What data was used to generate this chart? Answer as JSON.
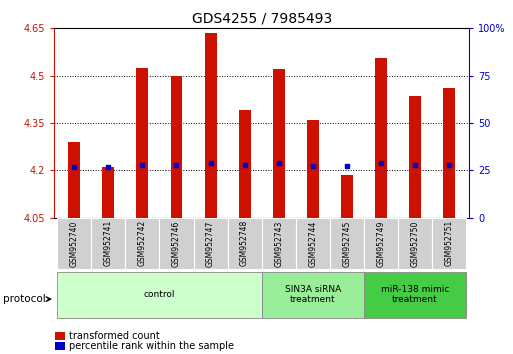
{
  "title": "GDS4255 / 7985493",
  "samples": [
    "GSM952740",
    "GSM952741",
    "GSM952742",
    "GSM952746",
    "GSM952747",
    "GSM952748",
    "GSM952743",
    "GSM952744",
    "GSM952745",
    "GSM952749",
    "GSM952750",
    "GSM952751"
  ],
  "bar_tops": [
    4.29,
    4.21,
    4.525,
    4.5,
    4.635,
    4.39,
    4.52,
    4.36,
    4.185,
    4.555,
    4.435,
    4.46
  ],
  "bar_bottoms": [
    4.05,
    4.05,
    4.05,
    4.05,
    4.05,
    4.05,
    4.05,
    4.05,
    4.05,
    4.05,
    4.05,
    4.05
  ],
  "percentile_vals": [
    4.212,
    4.212,
    4.216,
    4.216,
    4.222,
    4.216,
    4.222,
    4.213,
    4.213,
    4.222,
    4.216,
    4.216
  ],
  "groups": [
    {
      "label": "control",
      "start": 0,
      "end": 6,
      "color": "#ccffcc"
    },
    {
      "label": "SIN3A siRNA\ntreatment",
      "start": 6,
      "end": 9,
      "color": "#99ee99"
    },
    {
      "label": "miR-138 mimic\ntreatment",
      "start": 9,
      "end": 12,
      "color": "#44cc44"
    }
  ],
  "ylim_left": [
    4.05,
    4.65
  ],
  "ylim_right": [
    0,
    100
  ],
  "yticks_left": [
    4.05,
    4.2,
    4.35,
    4.5,
    4.65
  ],
  "ytick_labels_left": [
    "4.05",
    "4.2",
    "4.35",
    "4.5",
    "4.65"
  ],
  "yticks_right": [
    0,
    25,
    50,
    75,
    100
  ],
  "ytick_labels_right": [
    "0",
    "25",
    "50",
    "75",
    "100%"
  ],
  "gridlines": [
    4.2,
    4.35,
    4.5
  ],
  "bar_color": "#cc1100",
  "percentile_color": "#0000cc",
  "left_tick_color": "#cc1100",
  "right_tick_color": "#0000cc",
  "background_color": "#ffffff",
  "bar_width": 0.35
}
